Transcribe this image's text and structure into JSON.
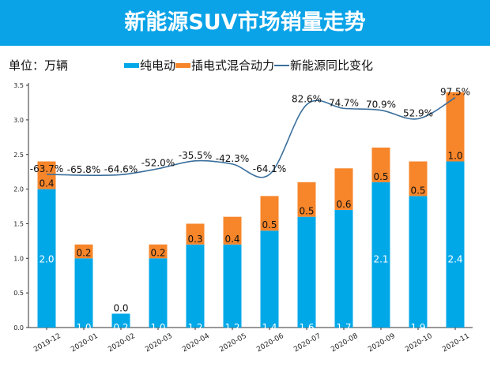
{
  "title": "新能源SUV市场销量走势",
  "unit_label": "单位：万辆",
  "colors": {
    "banner": "#0aa3e8",
    "bev": "#00a8e8",
    "phev": "#f7852a",
    "line": "#3a6f9c"
  },
  "chart_data": {
    "type": "bar",
    "stacked": true,
    "title": "新能源SUV市场销量走势",
    "ylabel": "",
    "ylim": [
      0,
      3.5
    ],
    "yticks": [
      "0.0",
      "0.5",
      "1.0",
      "1.5",
      "2.0",
      "2.5",
      "3.0",
      "3.5"
    ],
    "legend_position": "top",
    "grid": false,
    "categories": [
      "2019-12",
      "2020-01",
      "2020-02",
      "2020-03",
      "2020-04",
      "2020-05",
      "2020-06",
      "2020-07",
      "2020-08",
      "2020-09",
      "2020-10",
      "2020-11"
    ],
    "series": [
      {
        "name": "纯电动",
        "type": "bar",
        "values": [
          2.0,
          1.0,
          0.2,
          1.0,
          1.2,
          1.2,
          1.4,
          1.6,
          1.7,
          2.1,
          1.9,
          2.4
        ]
      },
      {
        "name": "插电式混合动力",
        "type": "bar",
        "values": [
          0.4,
          0.2,
          0.0,
          0.2,
          0.3,
          0.4,
          0.5,
          0.5,
          0.6,
          0.5,
          0.5,
          1.0
        ]
      },
      {
        "name": "新能源同比变化",
        "type": "line",
        "unit": "%",
        "values": [
          -63.7,
          -65.8,
          -64.6,
          -52.0,
          -35.5,
          -42.3,
          -64.1,
          82.6,
          74.7,
          70.9,
          52.9,
          97.5
        ]
      }
    ]
  }
}
